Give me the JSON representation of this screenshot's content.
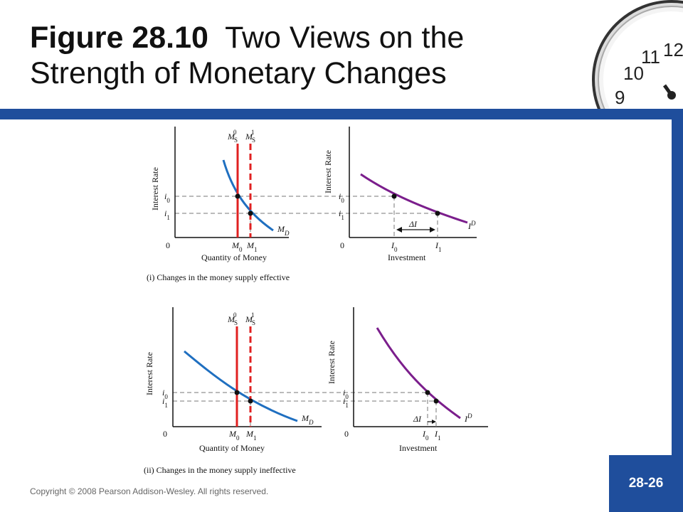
{
  "slide": {
    "title_bold": "Figure 28.10",
    "title_rest": "Two Views on the Strength of Monetary Changes",
    "copyright": "Copyright © 2008 Pearson Addison-Wesley. All rights reserved.",
    "page_number": "28-26",
    "colors": {
      "accent_blue": "#1f4e9c",
      "money_supply": "#e02020",
      "money_demand": "#1f6fc0",
      "investment_demand": "#7b1e8c"
    }
  },
  "chart_data": [
    {
      "type": "line",
      "panel": "(i) money market",
      "ylabel": "Interest Rate",
      "xlabel": "Quantity of Money",
      "origin_label": "0",
      "ticks_x": [
        "M0",
        "M1"
      ],
      "ticks_y": [
        "i0",
        "i1"
      ],
      "series": [
        {
          "name": "MS0",
          "style": "solid",
          "label_main": "M",
          "label_sub": "S",
          "label_sup": "0"
        },
        {
          "name": "MS1",
          "style": "dashed",
          "label_main": "M",
          "label_sub": "S",
          "label_sup": "1"
        },
        {
          "name": "MD",
          "label_main": "M",
          "label_sub": "D"
        }
      ]
    },
    {
      "type": "line",
      "panel": "(i) investment",
      "ylabel": "Interest Rate",
      "xlabel": "Investment",
      "origin_label": "0",
      "ticks_x": [
        "I0",
        "I1"
      ],
      "ticks_y": [
        "i0",
        "i1"
      ],
      "annotation": "ΔI",
      "series": [
        {
          "name": "ID",
          "label_main": "I",
          "label_sup": "D"
        }
      ]
    },
    {
      "type": "line",
      "panel": "(ii) money market",
      "ylabel": "Interest Rate",
      "xlabel": "Quantity of Money",
      "origin_label": "0",
      "ticks_x": [
        "M0",
        "M1"
      ],
      "ticks_y": [
        "i0",
        "i1"
      ],
      "series": [
        {
          "name": "MS0",
          "style": "solid",
          "label_main": "M",
          "label_sub": "S",
          "label_sup": "0"
        },
        {
          "name": "MS1",
          "style": "dashed",
          "label_main": "M",
          "label_sub": "S",
          "label_sup": "1"
        },
        {
          "name": "MD",
          "label_main": "M",
          "label_sub": "D"
        }
      ]
    },
    {
      "type": "line",
      "panel": "(ii) investment",
      "ylabel": "Interest Rate",
      "xlabel": "Investment",
      "origin_label": "0",
      "ticks_x": [
        "I0",
        "I1"
      ],
      "ticks_y": [
        "i0",
        "i1"
      ],
      "annotation": "ΔI",
      "series": [
        {
          "name": "ID",
          "label_main": "I",
          "label_sup": "D"
        }
      ]
    }
  ],
  "captions": {
    "top": "(i) Changes in the money supply effective",
    "bottom": "(ii) Changes in the money supply ineffective"
  },
  "clock_numbers": [
    "12",
    "11",
    "10",
    "9"
  ]
}
